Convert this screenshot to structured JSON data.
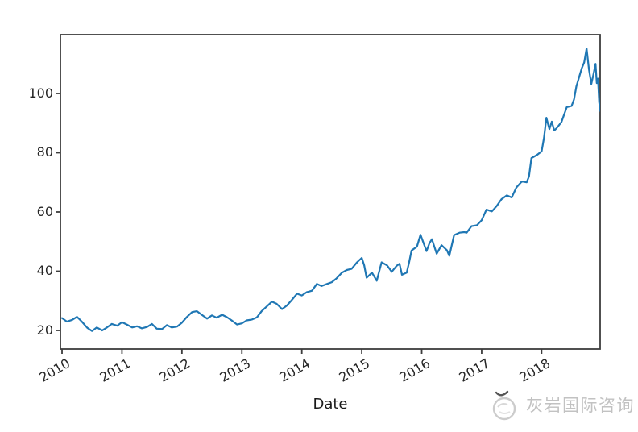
{
  "figure": {
    "background": "#ffffff",
    "watermark": {
      "text": "灰岩国际咨询",
      "color": "#c2c2c2"
    }
  },
  "chart_data": {
    "type": "line",
    "title": "",
    "xlabel": "Date",
    "ylabel": "",
    "grid": false,
    "legend": null,
    "line_color": "#1f77b4",
    "axis_color": "#3d3d3d",
    "tick_text_color": "#262626",
    "xlim": [
      2009.973,
      2018.976
    ],
    "ylim": [
      13.74,
      119.86
    ],
    "x_tick_values": [
      2010,
      2011,
      2012,
      2013,
      2014,
      2015,
      2016,
      2017,
      2018
    ],
    "x_tick_labels": [
      "2010",
      "2011",
      "2012",
      "2013",
      "2014",
      "2015",
      "2016",
      "2017",
      "2018"
    ],
    "y_tick_values": [
      20,
      40,
      60,
      80,
      100
    ],
    "y_tick_labels": [
      "20",
      "40",
      "60",
      "80",
      "100"
    ],
    "series": [
      {
        "name": "",
        "points": [
          [
            2010.0,
            24.2
          ],
          [
            2010.08,
            23.0
          ],
          [
            2010.17,
            23.6
          ],
          [
            2010.25,
            24.6
          ],
          [
            2010.33,
            23.0
          ],
          [
            2010.42,
            20.9
          ],
          [
            2010.5,
            19.8
          ],
          [
            2010.58,
            21.0
          ],
          [
            2010.67,
            20.0
          ],
          [
            2010.75,
            21.0
          ],
          [
            2010.83,
            22.2
          ],
          [
            2010.92,
            21.6
          ],
          [
            2011.0,
            22.8
          ],
          [
            2011.08,
            22.0
          ],
          [
            2011.17,
            21.0
          ],
          [
            2011.25,
            21.4
          ],
          [
            2011.33,
            20.7
          ],
          [
            2011.42,
            21.2
          ],
          [
            2011.5,
            22.2
          ],
          [
            2011.58,
            20.6
          ],
          [
            2011.67,
            20.5
          ],
          [
            2011.75,
            21.8
          ],
          [
            2011.83,
            21.0
          ],
          [
            2011.92,
            21.3
          ],
          [
            2012.0,
            22.6
          ],
          [
            2012.08,
            24.5
          ],
          [
            2012.17,
            26.2
          ],
          [
            2012.25,
            26.5
          ],
          [
            2012.33,
            25.3
          ],
          [
            2012.42,
            24.0
          ],
          [
            2012.5,
            25.1
          ],
          [
            2012.58,
            24.3
          ],
          [
            2012.67,
            25.3
          ],
          [
            2012.75,
            24.5
          ],
          [
            2012.83,
            23.4
          ],
          [
            2012.92,
            22.0
          ],
          [
            2013.0,
            22.4
          ],
          [
            2013.08,
            23.4
          ],
          [
            2013.17,
            23.7
          ],
          [
            2013.25,
            24.4
          ],
          [
            2013.33,
            26.5
          ],
          [
            2013.42,
            28.2
          ],
          [
            2013.5,
            29.7
          ],
          [
            2013.58,
            29.0
          ],
          [
            2013.67,
            27.2
          ],
          [
            2013.75,
            28.4
          ],
          [
            2013.83,
            30.2
          ],
          [
            2013.92,
            32.4
          ],
          [
            2014.0,
            31.8
          ],
          [
            2014.08,
            32.9
          ],
          [
            2014.17,
            33.4
          ],
          [
            2014.25,
            35.7
          ],
          [
            2014.33,
            35.0
          ],
          [
            2014.42,
            35.7
          ],
          [
            2014.5,
            36.3
          ],
          [
            2014.58,
            37.6
          ],
          [
            2014.67,
            39.5
          ],
          [
            2014.75,
            40.4
          ],
          [
            2014.83,
            40.8
          ],
          [
            2014.92,
            43.0
          ],
          [
            2015.0,
            44.5
          ],
          [
            2015.04,
            42.0
          ],
          [
            2015.08,
            37.8
          ],
          [
            2015.17,
            39.5
          ],
          [
            2015.25,
            36.8
          ],
          [
            2015.33,
            43.0
          ],
          [
            2015.42,
            42.0
          ],
          [
            2015.5,
            39.8
          ],
          [
            2015.58,
            41.8
          ],
          [
            2015.63,
            42.5
          ],
          [
            2015.67,
            38.8
          ],
          [
            2015.75,
            39.5
          ],
          [
            2015.79,
            43.0
          ],
          [
            2015.83,
            47.0
          ],
          [
            2015.92,
            48.3
          ],
          [
            2015.98,
            52.3
          ],
          [
            2016.08,
            46.8
          ],
          [
            2016.13,
            49.5
          ],
          [
            2016.17,
            50.8
          ],
          [
            2016.25,
            45.9
          ],
          [
            2016.33,
            48.8
          ],
          [
            2016.42,
            47.1
          ],
          [
            2016.46,
            45.2
          ],
          [
            2016.54,
            52.2
          ],
          [
            2016.63,
            53.0
          ],
          [
            2016.71,
            53.2
          ],
          [
            2016.75,
            53.0
          ],
          [
            2016.83,
            55.2
          ],
          [
            2016.92,
            55.5
          ],
          [
            2017.0,
            57.2
          ],
          [
            2017.08,
            60.8
          ],
          [
            2017.17,
            60.2
          ],
          [
            2017.25,
            62.0
          ],
          [
            2017.33,
            64.3
          ],
          [
            2017.42,
            65.6
          ],
          [
            2017.5,
            64.9
          ],
          [
            2017.58,
            68.3
          ],
          [
            2017.67,
            70.3
          ],
          [
            2017.75,
            70.0
          ],
          [
            2017.79,
            72.0
          ],
          [
            2017.83,
            78.2
          ],
          [
            2017.92,
            79.2
          ],
          [
            2018.0,
            80.5
          ],
          [
            2018.04,
            85.0
          ],
          [
            2018.08,
            91.8
          ],
          [
            2018.13,
            88.0
          ],
          [
            2018.17,
            90.5
          ],
          [
            2018.21,
            87.5
          ],
          [
            2018.25,
            88.3
          ],
          [
            2018.33,
            90.3
          ],
          [
            2018.42,
            95.4
          ],
          [
            2018.5,
            95.8
          ],
          [
            2018.54,
            98.0
          ],
          [
            2018.58,
            102.4
          ],
          [
            2018.67,
            108.5
          ],
          [
            2018.71,
            110.5
          ],
          [
            2018.75,
            115.2
          ],
          [
            2018.79,
            108.0
          ],
          [
            2018.83,
            103.2
          ],
          [
            2018.87,
            107.0
          ],
          [
            2018.9,
            110.0
          ],
          [
            2018.92,
            103.5
          ],
          [
            2018.94,
            105.0
          ],
          [
            2018.96,
            97.0
          ],
          [
            2018.98,
            94.1
          ]
        ]
      }
    ]
  }
}
